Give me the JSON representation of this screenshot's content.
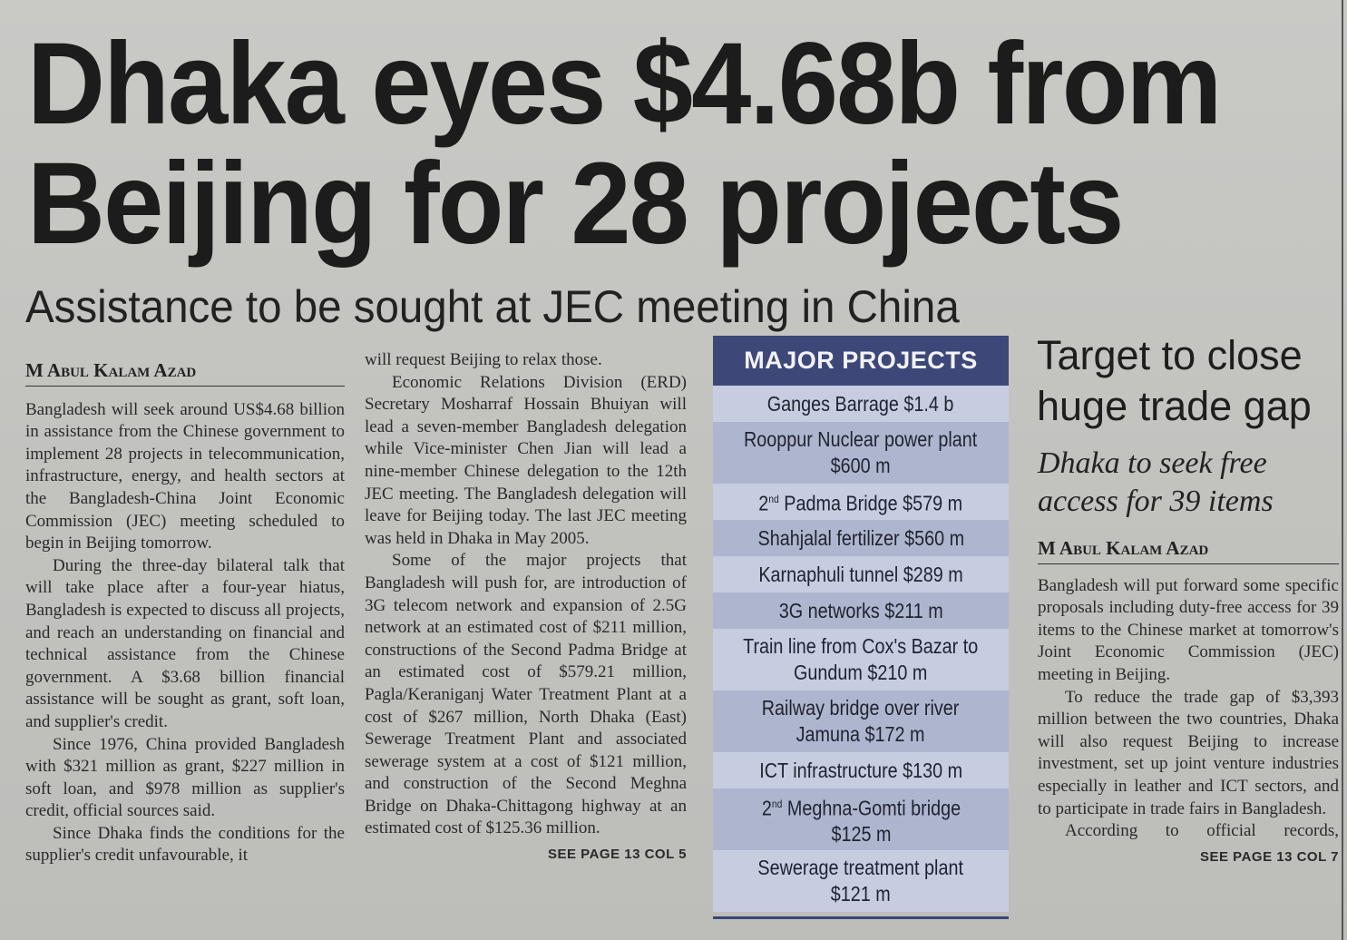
{
  "headline": {
    "line1": "Dhaka eyes $4.68b from",
    "line2": "Beijing for 28 projects",
    "subhead": "Assistance to be sought at JEC meeting in China"
  },
  "main_story": {
    "byline": "M Abul Kalam Azad",
    "col1_paragraphs": [
      "Bangladesh will seek around US$4.68 billion in assistance from the Chinese government to implement 28 projects in telecommunication, infrastructure, energy, and health sectors at the Bangladesh-China Joint Economic Commission (JEC) meeting scheduled to begin in Beijing tomorrow.",
      "During the three-day bilateral talk that will take place after a four-year hiatus, Bangladesh is expected to discuss all projects, and reach an understanding on financial and technical assistance from the Chinese government. A $3.68 billion financial assistance will be sought as grant, soft loan, and supplier's credit.",
      "Since 1976, China provided Bangladesh with $321 million as grant, $227 million in soft loan, and $978 million as supplier's credit, official sources said.",
      "Since Dhaka finds the conditions for the supplier's credit unfavourable, it"
    ],
    "col2_paragraphs": [
      "will request Beijing to relax those.",
      "Economic Relations Division (ERD) Secretary Mosharraf Hossain Bhuiyan will lead a seven-member Bangladesh delegation while Vice-minister Chen Jian will lead a nine-member Chinese delegation to the 12th JEC meeting. The Bangladesh delegation will leave for Beijing today. The last JEC meeting was held in Dhaka in May 2005.",
      "Some of the major projects that Bangladesh will push for, are introduction of 3G telecom network and expansion of 2.5G network at an estimated cost of $211 million, constructions of the Second Padma Bridge at an estimated cost of $579.21 million, Pagla/Keraniganj Water Treatment Plant at a cost of $267 million, North Dhaka (East) Sewerage Treatment Plant and associated sewerage system at a cost of $121 million, and construction of the Second Meghna Bridge on Dhaka-Chittagong highway at an estimated cost of $125.36 million."
    ],
    "jump": "SEE PAGE 13 COL 5"
  },
  "major_projects": {
    "title": "MAJOR PROJECTS",
    "header_color": "#3d4879",
    "row_colors": [
      "#c6cde0",
      "#aeb6cf"
    ],
    "items": [
      {
        "lines": [
          "Ganges Barrage $1.4 b"
        ]
      },
      {
        "lines": [
          "Rooppur Nuclear power plant",
          "$600 m"
        ]
      },
      {
        "num": "2",
        "sup": "nd",
        "lines": [
          " Padma Bridge $579 m"
        ]
      },
      {
        "lines": [
          "Shahjalal fertilizer $560 m"
        ]
      },
      {
        "lines": [
          "Karnaphuli tunnel $289 m"
        ]
      },
      {
        "lines": [
          "3G networks $211 m"
        ]
      },
      {
        "lines": [
          "Train line from Cox's Bazar to",
          "Gundum $210 m"
        ]
      },
      {
        "lines": [
          "Railway bridge over river",
          "Jamuna $172 m"
        ]
      },
      {
        "lines": [
          "ICT infrastructure $130 m"
        ]
      },
      {
        "num": "2",
        "sup": "nd",
        "lines": [
          " Meghna-Gomti bridge",
          "$125 m"
        ]
      },
      {
        "lines": [
          "Sewerage treatment plant",
          "$121 m"
        ]
      }
    ]
  },
  "side_story": {
    "headline_lines": [
      "Target to close",
      "huge trade gap"
    ],
    "subhead_lines": [
      "Dhaka to seek free",
      "access for 39 items"
    ],
    "byline": "M Abul Kalam Azad",
    "paragraphs": [
      "Bangladesh will put forward some specific proposals including duty-free access for 39 items to the Chinese market at tomorrow's Joint Economic Commission (JEC) meeting in Beijing.",
      "To reduce the trade gap of $3,393 million between the two countries, Dhaka will also request Beijing to increase investment, set up joint venture industries especially in leather and ICT sectors, and to participate in trade fairs in Bangladesh.",
      "According to official records,"
    ],
    "jump": "SEE PAGE 13 COL 7"
  }
}
